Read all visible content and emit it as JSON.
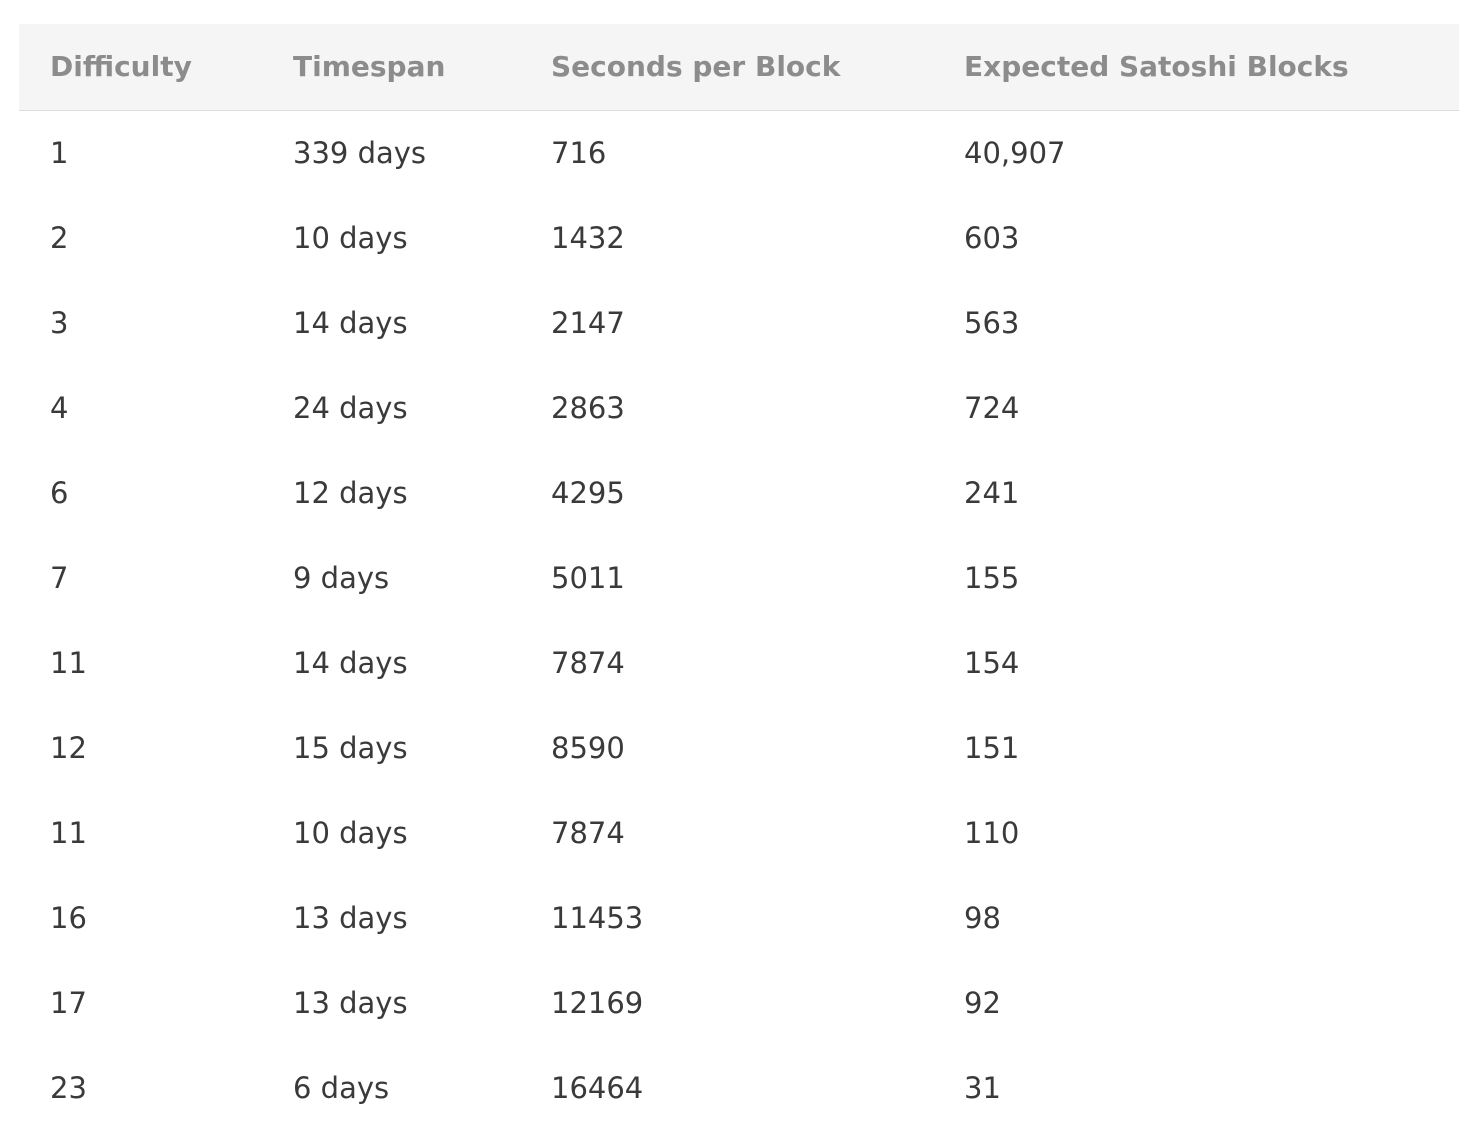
{
  "table": {
    "headers": [
      "Difficulty",
      "Timespan",
      "Seconds per Block",
      "Expected Satoshi Blocks"
    ],
    "rows": [
      [
        "1",
        "339 days",
        "716",
        "40,907"
      ],
      [
        "2",
        "10 days",
        "1432",
        "603"
      ],
      [
        "3",
        "14 days",
        "2147",
        "563"
      ],
      [
        "4",
        "24 days",
        "2863",
        "724"
      ],
      [
        "6",
        "12 days",
        "4295",
        "241"
      ],
      [
        "7",
        "9 days",
        "5011",
        "155"
      ],
      [
        "11",
        "14 days",
        "7874",
        "154"
      ],
      [
        "12",
        "15 days",
        "8590",
        "151"
      ],
      [
        "11",
        "10 days",
        "7874",
        "110"
      ],
      [
        "16",
        "13 days",
        "11453",
        "98"
      ],
      [
        "17",
        "13 days",
        "12169",
        "92"
      ],
      [
        "23",
        "6 days",
        "16464",
        "31"
      ]
    ]
  },
  "colors": {
    "header_background": "#f5f5f5",
    "header_text": "#8c8c8c",
    "body_text": "#3a3a3a"
  }
}
